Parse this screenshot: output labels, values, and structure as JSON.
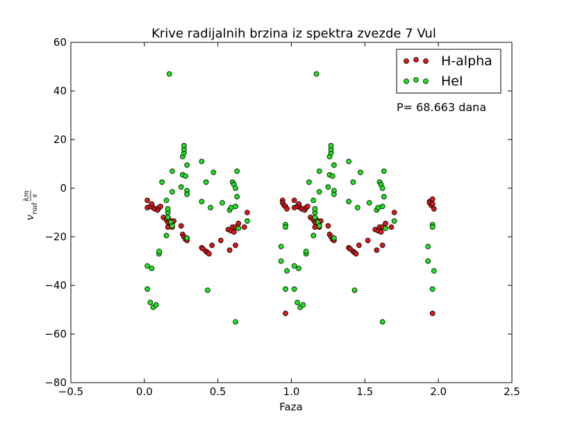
{
  "chart_data": {
    "type": "scatter",
    "title": "Krive radijalnih brzina iz spektra zvezde 7 Vul",
    "xlabel": "Faza",
    "ylabel_main": "v",
    "ylabel_sub": "rad",
    "ylabel_num": "km",
    "ylabel_den": "s",
    "xlim": [
      -0.5,
      2.5
    ],
    "ylim": [
      -80,
      60
    ],
    "xticks": [
      -0.5,
      0.0,
      0.5,
      1.0,
      1.5,
      2.0,
      2.5
    ],
    "xtick_labels": [
      "−0.5",
      "0.0",
      "0.5",
      "1.0",
      "1.5",
      "2.0",
      "2.5"
    ],
    "yticks": [
      60,
      40,
      20,
      0,
      -20,
      -40,
      -60,
      -80
    ],
    "ytick_labels": [
      "60",
      "40",
      "20",
      "0",
      "−20",
      "−40",
      "−60",
      "−80"
    ],
    "legend_position": "top-right",
    "annotation": "P= 68.663 dana",
    "series": [
      {
        "name": "H-alpha",
        "color": "#d61a1a",
        "points": [
          [
            0.02,
            -5
          ],
          [
            0.02,
            -8
          ],
          [
            0.04,
            -7.5
          ],
          [
            0.05,
            -6.5
          ],
          [
            0.06,
            -8
          ],
          [
            0.07,
            -8.5
          ],
          [
            0.09,
            -9
          ],
          [
            0.1,
            -8
          ],
          [
            0.11,
            -7.5
          ],
          [
            0.13,
            -12
          ],
          [
            0.15,
            -13
          ],
          [
            0.16,
            -14
          ],
          [
            0.17,
            -13
          ],
          [
            0.18,
            -14.5
          ],
          [
            0.19,
            -16
          ],
          [
            0.16,
            -16
          ],
          [
            0.2,
            -13.5
          ],
          [
            0.25,
            -15.5
          ],
          [
            0.26,
            -19
          ],
          [
            0.27,
            -20
          ],
          [
            0.28,
            -21
          ],
          [
            0.29,
            -21.5
          ],
          [
            0.39,
            -24.5
          ],
          [
            0.4,
            -25
          ],
          [
            0.42,
            -26
          ],
          [
            0.43,
            -26.5
          ],
          [
            0.44,
            -27
          ],
          [
            0.46,
            -23.5
          ],
          [
            0.52,
            -21.5
          ],
          [
            0.57,
            -17
          ],
          [
            0.58,
            -25.5
          ],
          [
            0.59,
            -17.5
          ],
          [
            0.6,
            -16
          ],
          [
            0.61,
            -18
          ],
          [
            0.62,
            -16
          ],
          [
            0.62,
            -23.5
          ],
          [
            0.64,
            -14.5
          ],
          [
            0.68,
            -16
          ],
          [
            0.7,
            -10
          ],
          [
            0.94,
            -5
          ],
          [
            0.94,
            -6
          ],
          [
            0.95,
            -7
          ],
          [
            0.96,
            -7.5
          ],
          [
            0.97,
            -8.5
          ],
          [
            0.96,
            -51.5
          ],
          [
            1.02,
            -5
          ],
          [
            1.02,
            -8
          ],
          [
            1.04,
            -7.5
          ],
          [
            1.05,
            -6.5
          ],
          [
            1.06,
            -8
          ],
          [
            1.07,
            -8.5
          ],
          [
            1.09,
            -9
          ],
          [
            1.1,
            -8
          ],
          [
            1.11,
            -7.5
          ],
          [
            1.13,
            -12
          ],
          [
            1.15,
            -13
          ],
          [
            1.16,
            -14
          ],
          [
            1.17,
            -13
          ],
          [
            1.18,
            -14.5
          ],
          [
            1.19,
            -16
          ],
          [
            1.16,
            -16
          ],
          [
            1.2,
            -13.5
          ],
          [
            1.25,
            -15.5
          ],
          [
            1.26,
            -19
          ],
          [
            1.27,
            -20
          ],
          [
            1.28,
            -21
          ],
          [
            1.29,
            -21.5
          ],
          [
            1.39,
            -24.5
          ],
          [
            1.4,
            -25
          ],
          [
            1.42,
            -26
          ],
          [
            1.43,
            -26.5
          ],
          [
            1.44,
            -27
          ],
          [
            1.46,
            -23.5
          ],
          [
            1.52,
            -21.5
          ],
          [
            1.57,
            -17
          ],
          [
            1.58,
            -25.5
          ],
          [
            1.59,
            -17.5
          ],
          [
            1.6,
            -16
          ],
          [
            1.61,
            -18
          ],
          [
            1.62,
            -16
          ],
          [
            1.62,
            -23.5
          ],
          [
            1.64,
            -14.5
          ],
          [
            1.68,
            -16
          ],
          [
            1.7,
            -10
          ],
          [
            1.94,
            -5.5
          ],
          [
            1.94,
            -6
          ],
          [
            1.95,
            -7
          ],
          [
            1.96,
            -6.5
          ],
          [
            1.97,
            -8.5
          ],
          [
            1.96,
            -4.5
          ],
          [
            1.96,
            -51.5
          ]
        ]
      },
      {
        "name": "HeI",
        "color": "#1fe01f",
        "points": [
          [
            0.02,
            -32
          ],
          [
            0.02,
            -41.5
          ],
          [
            0.04,
            -47
          ],
          [
            0.05,
            -33
          ],
          [
            0.06,
            -49
          ],
          [
            0.08,
            -48
          ],
          [
            0.1,
            -27
          ],
          [
            0.1,
            -26
          ],
          [
            0.12,
            2.5
          ],
          [
            0.15,
            -19.5
          ],
          [
            0.15,
            -5
          ],
          [
            0.16,
            -10
          ],
          [
            0.16,
            -12
          ],
          [
            0.16,
            -8.5
          ],
          [
            0.17,
            47
          ],
          [
            0.18,
            -14
          ],
          [
            0.19,
            -15.5
          ],
          [
            0.19,
            7
          ],
          [
            0.19,
            -1.5
          ],
          [
            0.25,
            0.5
          ],
          [
            0.26,
            13
          ],
          [
            0.26,
            5.5
          ],
          [
            0.27,
            14.5
          ],
          [
            0.27,
            16
          ],
          [
            0.27,
            17.5
          ],
          [
            0.28,
            5
          ],
          [
            0.29,
            9.5
          ],
          [
            0.29,
            -1
          ],
          [
            0.29,
            -2.5
          ],
          [
            0.29,
            -20.5
          ],
          [
            0.39,
            11
          ],
          [
            0.39,
            -5.5
          ],
          [
            0.42,
            2.5
          ],
          [
            0.43,
            -42
          ],
          [
            0.45,
            -8
          ],
          [
            0.47,
            6.5
          ],
          [
            0.53,
            -6
          ],
          [
            0.58,
            -9
          ],
          [
            0.59,
            -8
          ],
          [
            0.6,
            2.5
          ],
          [
            0.61,
            1.5
          ],
          [
            0.62,
            0
          ],
          [
            0.62,
            -55
          ],
          [
            0.62,
            -7.5
          ],
          [
            0.63,
            7
          ],
          [
            0.63,
            -3.5
          ],
          [
            0.64,
            -16.5
          ],
          [
            0.7,
            -13.5
          ],
          [
            0.93,
            -30
          ],
          [
            0.93,
            -24
          ],
          [
            0.96,
            -15
          ],
          [
            0.96,
            -16
          ],
          [
            0.96,
            -41.5
          ],
          [
            0.97,
            -34
          ],
          [
            1.02,
            -32
          ],
          [
            1.02,
            -41.5
          ],
          [
            1.04,
            -47
          ],
          [
            1.05,
            -33
          ],
          [
            1.06,
            -49
          ],
          [
            1.08,
            -48
          ],
          [
            1.1,
            -27
          ],
          [
            1.1,
            -26
          ],
          [
            1.12,
            2.5
          ],
          [
            1.15,
            -19.5
          ],
          [
            1.15,
            -5
          ],
          [
            1.16,
            -10
          ],
          [
            1.16,
            -12
          ],
          [
            1.16,
            -8.5
          ],
          [
            1.17,
            47
          ],
          [
            1.18,
            -14
          ],
          [
            1.19,
            -15.5
          ],
          [
            1.19,
            7
          ],
          [
            1.19,
            -1.5
          ],
          [
            1.25,
            0.5
          ],
          [
            1.26,
            13
          ],
          [
            1.26,
            5.5
          ],
          [
            1.27,
            14.5
          ],
          [
            1.27,
            16
          ],
          [
            1.27,
            17.5
          ],
          [
            1.28,
            5
          ],
          [
            1.29,
            9.5
          ],
          [
            1.29,
            -1
          ],
          [
            1.29,
            -2.5
          ],
          [
            1.29,
            -20.5
          ],
          [
            1.39,
            11
          ],
          [
            1.39,
            -5.5
          ],
          [
            1.42,
            2.5
          ],
          [
            1.43,
            -42
          ],
          [
            1.45,
            -8
          ],
          [
            1.47,
            6.5
          ],
          [
            1.53,
            -6
          ],
          [
            1.58,
            -9
          ],
          [
            1.59,
            -8
          ],
          [
            1.6,
            2.5
          ],
          [
            1.61,
            1.5
          ],
          [
            1.62,
            0
          ],
          [
            1.62,
            -55
          ],
          [
            1.62,
            -7.5
          ],
          [
            1.63,
            7
          ],
          [
            1.63,
            -3.5
          ],
          [
            1.64,
            -16.5
          ],
          [
            1.7,
            -13.5
          ],
          [
            1.93,
            -30
          ],
          [
            1.93,
            -24
          ],
          [
            1.96,
            -15
          ],
          [
            1.96,
            -16
          ],
          [
            1.96,
            -41.5
          ],
          [
            1.97,
            -34
          ]
        ]
      }
    ]
  }
}
